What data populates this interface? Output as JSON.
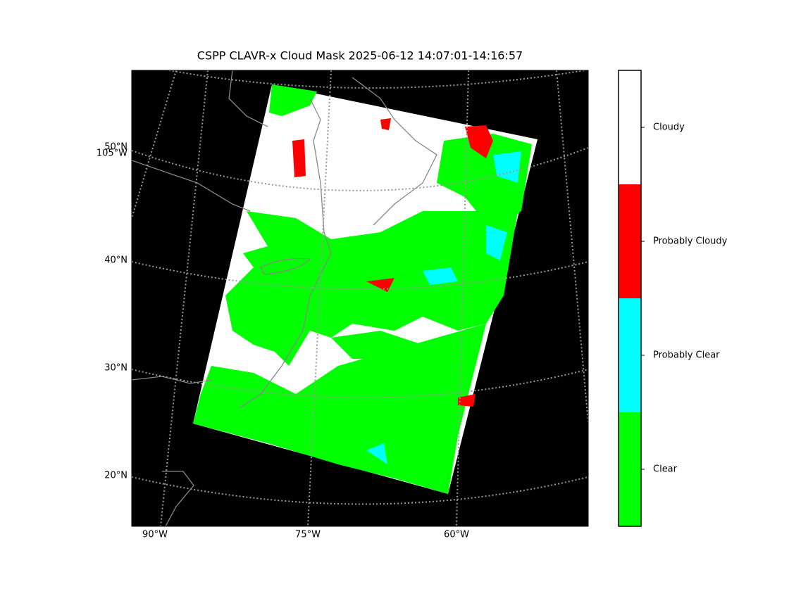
{
  "title": "CSPP CLAVR-x Cloud Mask 2025-06-12 14:07:01-14:16:57",
  "map": {
    "lat_labels": [
      "50°N",
      "40°N",
      "30°N",
      "20°N"
    ],
    "lon_labels": [
      "105°W",
      "90°W",
      "75°W",
      "60°W"
    ]
  },
  "colorbar": {
    "categories": [
      {
        "label": "Clear",
        "color": "#00ff00"
      },
      {
        "label": "Probably Clear",
        "color": "#00ffff"
      },
      {
        "label": "Probably Cloudy",
        "color": "#ff0000"
      },
      {
        "label": "Cloudy",
        "color": "#ffffff"
      }
    ]
  }
}
